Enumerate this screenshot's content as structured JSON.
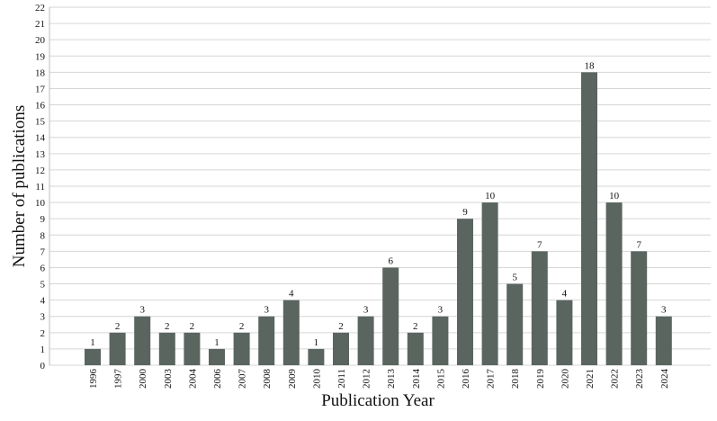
{
  "chart_data": {
    "type": "bar",
    "x_label": "Publication Year",
    "y_label": "Number of publications",
    "categories": [
      "1996",
      "1997",
      "2000",
      "2003",
      "2004",
      "2006",
      "2007",
      "2008",
      "2009",
      "2010",
      "2011",
      "2012",
      "2013",
      "2014",
      "2015",
      "2016",
      "2017",
      "2018",
      "2019",
      "2020",
      "2021",
      "2022",
      "2023",
      "2024"
    ],
    "values": [
      1,
      2,
      3,
      2,
      2,
      1,
      2,
      3,
      4,
      1,
      2,
      3,
      6,
      2,
      3,
      9,
      10,
      5,
      7,
      4,
      18,
      10,
      7,
      3
    ],
    "color": "#5a6560",
    "ylim": [
      0,
      22
    ],
    "yticks": [
      0,
      1,
      2,
      3,
      4,
      5,
      6,
      7,
      8,
      9,
      10,
      11,
      12,
      13,
      14,
      15,
      16,
      17,
      18,
      19,
      20,
      21,
      22
    ],
    "grid": true
  }
}
